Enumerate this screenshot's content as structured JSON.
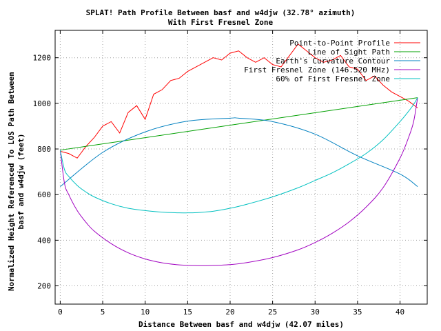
{
  "chart_data": {
    "type": "line",
    "title": "SPLAT! Path Profile Between basf and w4djw (32.78° azimuth)",
    "subtitle": "With First Fresnel Zone",
    "xlabel": "Distance Between basf and w4djw (42.07 miles)",
    "ylabel_line1": "Normalized Height Referenced To LOS Path Between",
    "ylabel_line2": "basf and w4djw (feet)",
    "xlim": [
      -0.6,
      43.2
    ],
    "ylim": [
      120,
      1320
    ],
    "x_ticks": [
      0,
      5,
      10,
      15,
      20,
      25,
      30,
      35,
      40
    ],
    "y_ticks": [
      200,
      400,
      600,
      800,
      1000,
      1200
    ],
    "grid": true,
    "legend_position": "top-right",
    "series": [
      {
        "name": "Point-to-Point Profile",
        "color": "#ff0000",
        "x": [
          0,
          1,
          2,
          3,
          4,
          5,
          6,
          7,
          8,
          9,
          10,
          11,
          12,
          13,
          14,
          15,
          16,
          17,
          18,
          19,
          20,
          21,
          22,
          23,
          24,
          25,
          26,
          27,
          28,
          29,
          30,
          31,
          32,
          33,
          34,
          35,
          36,
          37,
          38,
          39,
          40,
          41,
          42.07
        ],
        "y": [
          790,
          780,
          760,
          810,
          850,
          900,
          920,
          870,
          960,
          990,
          930,
          1040,
          1060,
          1100,
          1110,
          1140,
          1160,
          1180,
          1200,
          1190,
          1220,
          1230,
          1200,
          1180,
          1200,
          1170,
          1160,
          1210,
          1260,
          1230,
          1200,
          1180,
          1190,
          1210,
          1160,
          1150,
          1100,
          1120,
          1080,
          1050,
          1030,
          1010,
          980
        ]
      },
      {
        "name": "Line of Sight Path",
        "color": "#00a000",
        "x": [
          0,
          42.07
        ],
        "y": [
          795,
          1025
        ]
      },
      {
        "name": "Earth's Curvature Contour",
        "color": "#0080c0",
        "x": [
          0,
          5,
          10,
          15,
          20,
          21,
          25,
          30,
          35,
          40,
          42.07
        ],
        "y": [
          635,
          785,
          875,
          922,
          935,
          935,
          920,
          865,
          770,
          690,
          635
        ]
      },
      {
        "name": "First Fresnel Zone (146.520 MHz)",
        "color": "#a000c0",
        "x": [
          0,
          0.5,
          1,
          2,
          3,
          4,
          6,
          8,
          10,
          12,
          14,
          16,
          17.5,
          20,
          22,
          25,
          28,
          30,
          32,
          34,
          36,
          38,
          40,
          41,
          41.6,
          42.07
        ],
        "y": [
          795,
          650,
          600,
          530,
          480,
          440,
          385,
          345,
          318,
          301,
          292,
          289,
          289,
          293,
          302,
          324,
          358,
          390,
          430,
          480,
          545,
          630,
          760,
          850,
          920,
          1025
        ]
      },
      {
        "name": "60% of First Fresnel Zone",
        "color": "#00c0c0",
        "x": [
          0,
          0.5,
          1,
          2,
          3,
          4,
          6,
          8,
          10,
          12,
          14,
          15,
          16,
          18,
          20,
          22,
          25,
          28,
          30,
          32,
          34,
          36,
          38,
          40,
          41,
          41.6,
          42.07
        ],
        "y": [
          795,
          710,
          680,
          640,
          612,
          590,
          560,
          540,
          530,
          523,
          520,
          520,
          521,
          527,
          540,
          558,
          590,
          630,
          662,
          695,
          735,
          780,
          840,
          920,
          965,
          995,
          1025
        ]
      }
    ]
  }
}
